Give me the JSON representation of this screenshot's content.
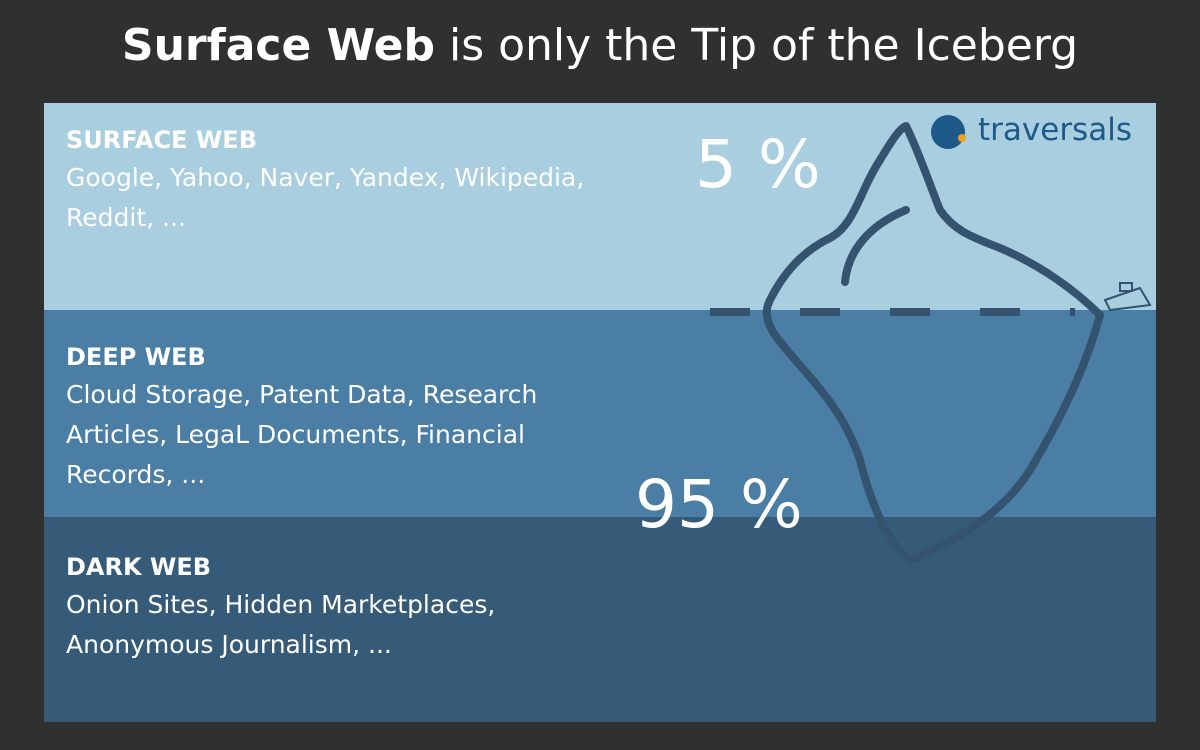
{
  "title": {
    "bold": "Surface Web",
    "rest": "is only the Tip of the Iceberg"
  },
  "logo": "traversals",
  "layers": [
    {
      "name": "SURFACE WEB",
      "description_lines": [
        "Google, Yahoo, Naver, Yandex, Wikipedia,",
        "Reddit, ..."
      ]
    },
    {
      "name": "DEEP WEB",
      "description_lines": [
        "Cloud Storage, Patent Data, Research",
        "Articles, LegaL Documents, Financial",
        "Records, ..."
      ]
    },
    {
      "name": "DARK WEB",
      "description_lines": [
        "Onion Sites, Hidden Marketplaces,",
        "Anonymous Journalism, ..."
      ]
    }
  ],
  "shares": {
    "above_surface": "5 %",
    "below_surface": "95 %"
  }
}
